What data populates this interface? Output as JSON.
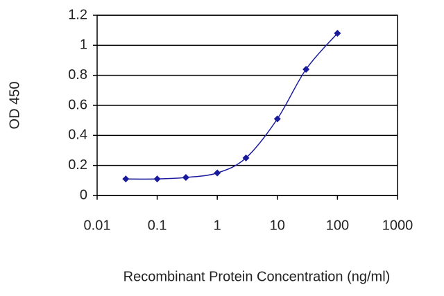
{
  "chart_data": {
    "type": "line",
    "x_label": "Recombinant Protein Concentration (ng/ml)",
    "y_label": "OD 450",
    "x": [
      0.03,
      0.1,
      0.3,
      1,
      3,
      10,
      30,
      100
    ],
    "series": [
      {
        "color": "#1a1a9c",
        "values": [
          0.11,
          0.11,
          0.12,
          0.15,
          0.25,
          0.51,
          0.84,
          1.08
        ]
      }
    ],
    "xlim": [
      0.01,
      1000
    ],
    "xticks": [
      0.01,
      0.1,
      1,
      10,
      100,
      1000
    ],
    "log_x": true,
    "ylim": [
      0,
      1.2
    ],
    "yticks": [
      0,
      0.2,
      0.4,
      0.6,
      0.8,
      1,
      1.2
    ],
    "grid": true
  }
}
